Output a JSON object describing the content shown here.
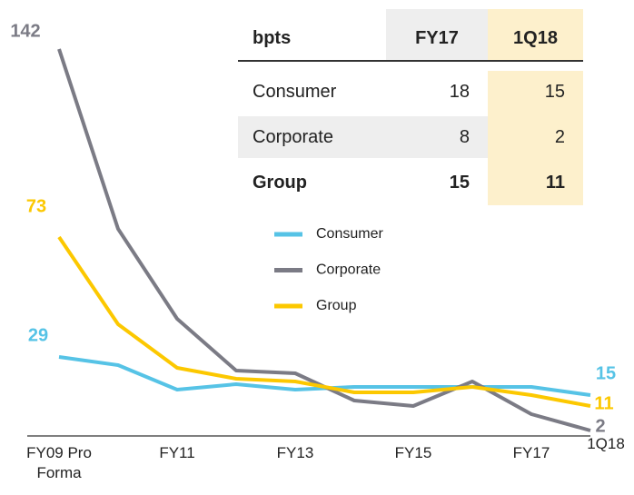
{
  "chart_data": {
    "type": "line",
    "categories": [
      "FY09 Pro Forma",
      null,
      "FY11",
      null,
      "FY13",
      null,
      "FY15",
      null,
      "FY17",
      "1Q18"
    ],
    "series": [
      {
        "name": "Consumer",
        "color": "#56c3e6",
        "values": [
          29,
          26,
          17,
          19,
          17,
          18,
          18,
          18,
          18,
          15
        ]
      },
      {
        "name": "Corporate",
        "color": "#7b7b85",
        "values": [
          142,
          76,
          43,
          24,
          23,
          13,
          11,
          20,
          8,
          2
        ]
      },
      {
        "name": "Group",
        "color": "#fcc800",
        "values": [
          73,
          41,
          25,
          21,
          20,
          16,
          16,
          18,
          15,
          11
        ]
      }
    ],
    "ylim": [
      0,
      150
    ]
  },
  "table": {
    "header": [
      "bpts",
      "FY17",
      "1Q18"
    ],
    "rows": [
      [
        "Consumer",
        "18",
        "15"
      ],
      [
        "Corporate",
        "8",
        "2"
      ],
      [
        "Group",
        "15",
        "11"
      ]
    ]
  }
}
